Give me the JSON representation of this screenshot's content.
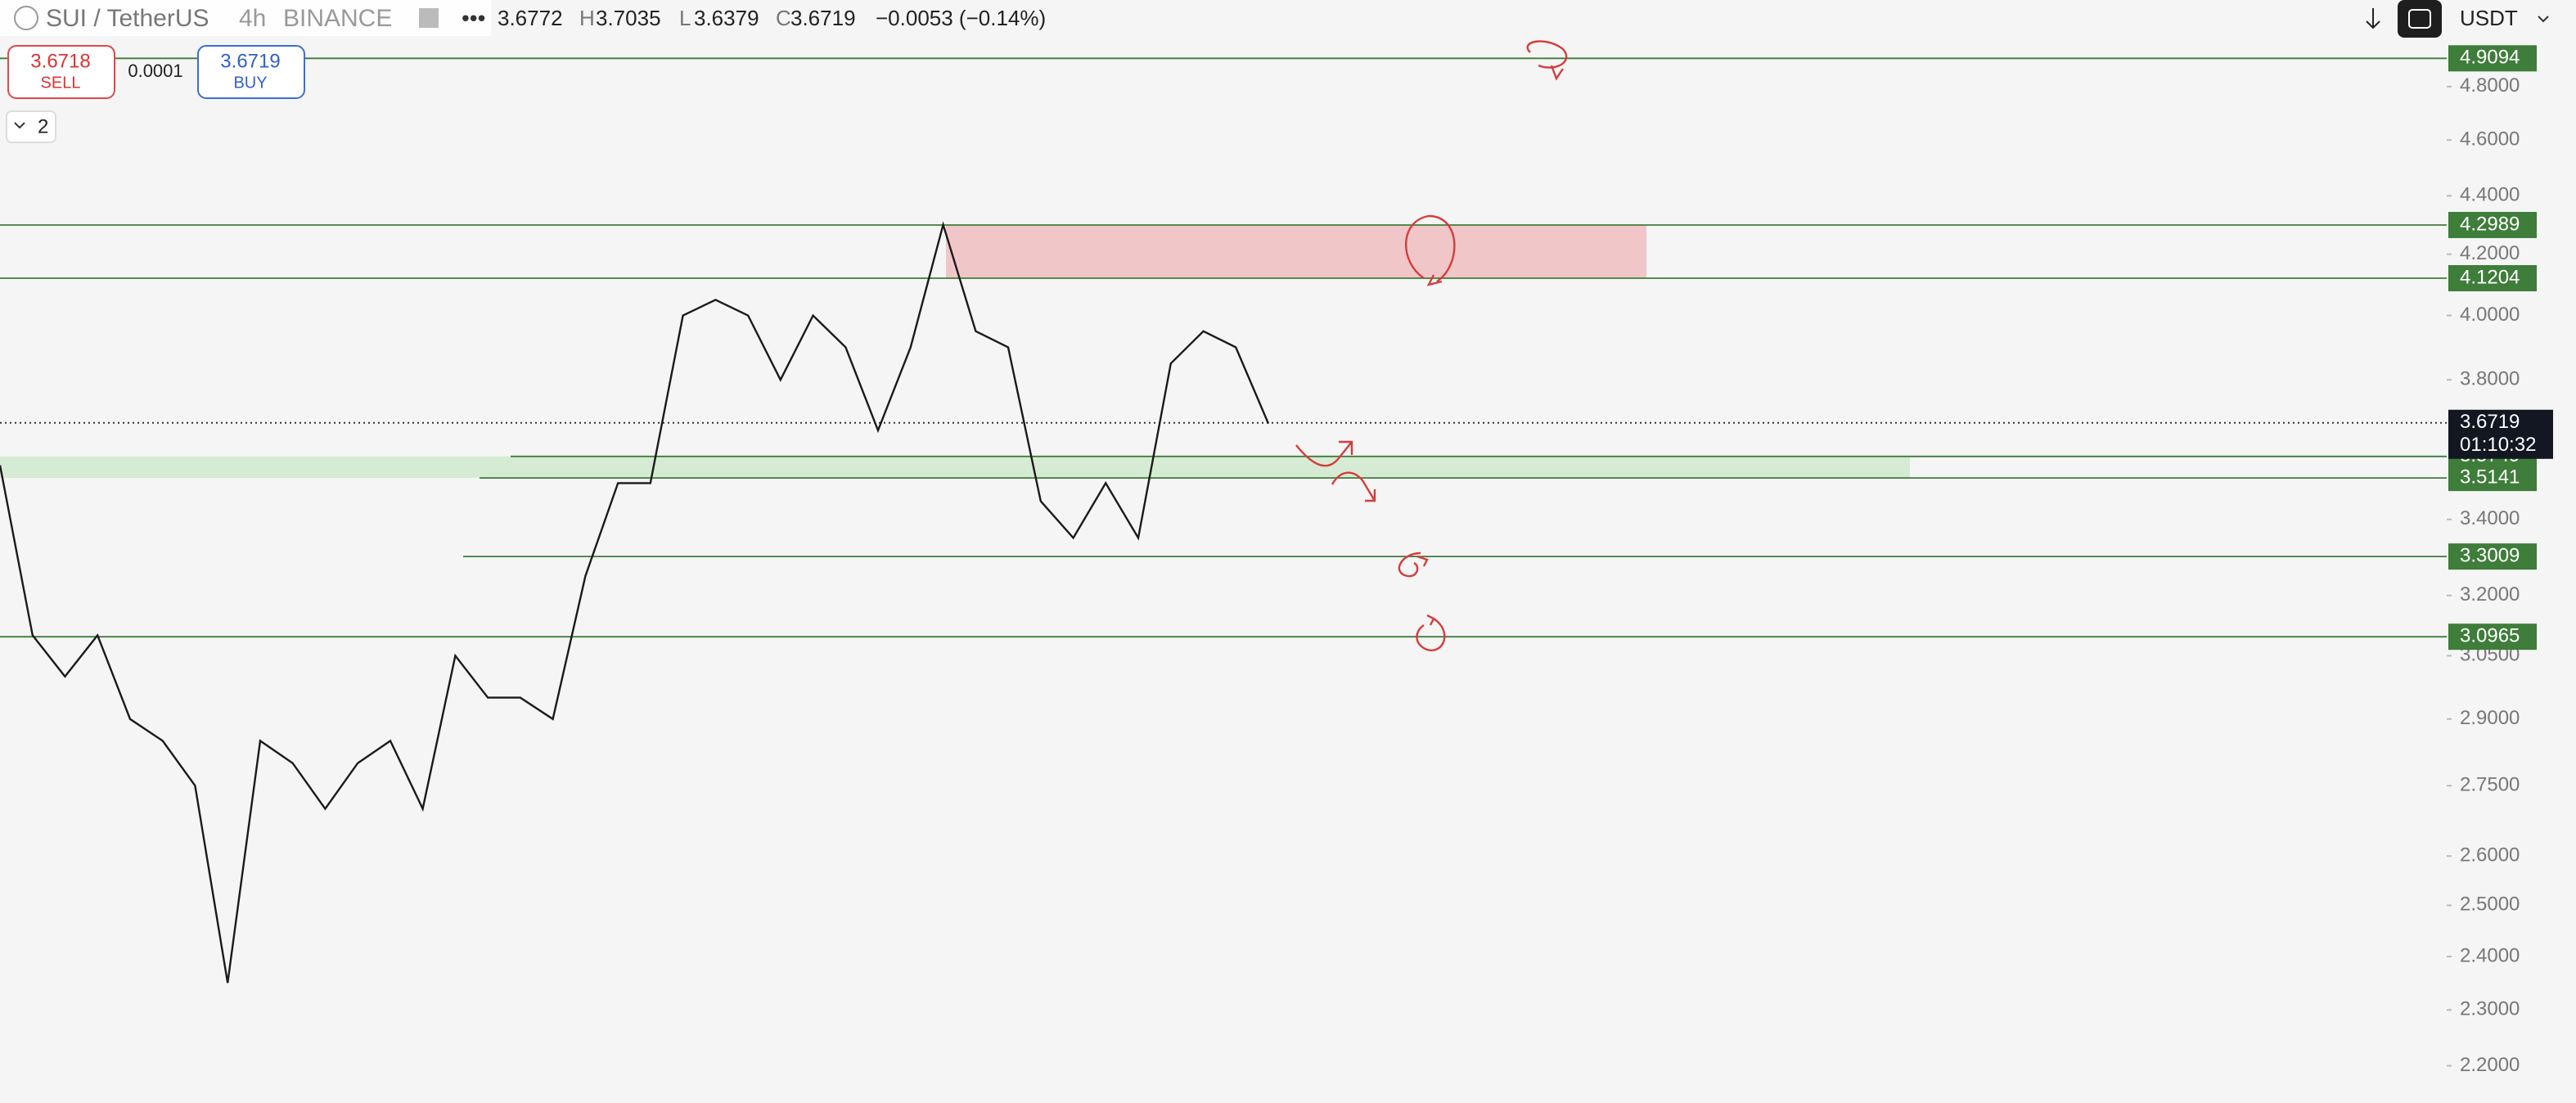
{
  "header": {
    "symbol": "SUI / TetherUS",
    "interval": "4h",
    "exchange": "BINANCE",
    "open": "3.6772",
    "high_label": "H",
    "high": "3.7035",
    "low_label": "L",
    "low": "3.6379",
    "close_label": "C",
    "close": "3.6719",
    "change": "−0.0053 (−0.14%)"
  },
  "trade": {
    "sell_price": "3.6718",
    "sell_label": "SELL",
    "spread": "0.0001",
    "buy_price": "3.6719",
    "buy_label": "BUY"
  },
  "indicators_count": "2",
  "currency": "USDT",
  "chart_data": {
    "type": "line",
    "log_scale": true,
    "color": "#1a1a1a",
    "ylim": [
      2.144,
      5.143
    ],
    "yticks": [
      {
        "value": 4.8,
        "label": "4.8000"
      },
      {
        "value": 4.6,
        "label": "4.6000"
      },
      {
        "value": 4.4,
        "label": "4.4000"
      },
      {
        "value": 4.2,
        "label": "4.2000"
      },
      {
        "value": 4.0,
        "label": "4.0000"
      },
      {
        "value": 3.8,
        "label": "3.8000"
      },
      {
        "value": 3.4,
        "label": "3.4000"
      },
      {
        "value": 3.2,
        "label": "3.2000"
      },
      {
        "value": 3.05,
        "label": "3.0500"
      },
      {
        "value": 2.9,
        "label": "2.9000"
      },
      {
        "value": 2.75,
        "label": "2.7500"
      },
      {
        "value": 2.6,
        "label": "2.6000"
      },
      {
        "value": 2.5,
        "label": "2.5000"
      },
      {
        "value": 2.4,
        "label": "2.4000"
      },
      {
        "value": 2.3,
        "label": "2.3000"
      },
      {
        "value": 2.2,
        "label": "2.2000"
      }
    ],
    "levels": [
      4.9094,
      4.2989,
      4.1204,
      3.5749,
      3.5141,
      3.3009,
      3.0965
    ],
    "level_color": "#3e7d3a",
    "last_price": 3.6719,
    "countdown": "01:10:32",
    "values": [
      3.55,
      3.1,
      3.0,
      3.1,
      2.9,
      2.85,
      2.75,
      2.35,
      2.85,
      2.8,
      2.7,
      2.8,
      2.85,
      2.7,
      3.05,
      2.95,
      2.95,
      2.9,
      3.25,
      3.5,
      3.5,
      4.0,
      4.05,
      4.0,
      3.8,
      4.0,
      3.9,
      3.65,
      3.9,
      4.3,
      3.95,
      3.9,
      3.45,
      3.35,
      3.5,
      3.35,
      3.85,
      3.95,
      3.9,
      3.67
    ]
  }
}
